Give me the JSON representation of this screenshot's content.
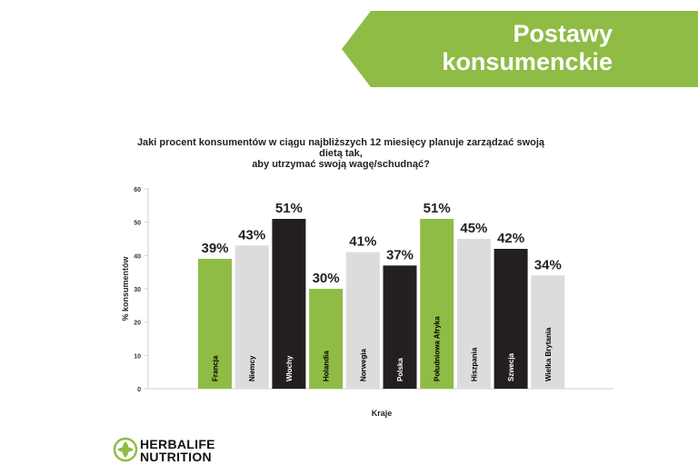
{
  "header": {
    "title_line1": "Postawy",
    "title_line2": "konsumenckie"
  },
  "brand": {
    "line1": "HERBALIFE",
    "line2": "NUTRITION",
    "logo_icon": "herbalife-leaf-icon"
  },
  "colors": {
    "green": "#8fbc45",
    "light_gray": "#dcdcdc",
    "black": "#231f20"
  },
  "chart_data": {
    "type": "bar",
    "title": "Jaki procent konsumentów w ciągu najbliższych 12 miesięcy planuje zarządzać swoją dietą tak, aby utrzymać swoją wagę/schudnąć?",
    "title_line1": "Jaki procent konsumentów w ciągu najbliższych 12 miesięcy planuje zarządzać swoją dietą tak,",
    "title_line2": "aby utrzymać swoją wagę/schudnąć?",
    "xlabel": "Kraje",
    "ylabel": "% konsumentów",
    "ylim": [
      0,
      60
    ],
    "yticks": [
      0,
      10,
      20,
      30,
      40,
      50,
      60
    ],
    "grid": false,
    "categories": [
      "Francja",
      "Niemcy",
      "Włochy",
      "Holandia",
      "Norwegia",
      "Polska",
      "Południowa Afryka",
      "Hiszpania",
      "Szwecja",
      "Wielka Brytania"
    ],
    "values": [
      39,
      43,
      51,
      30,
      41,
      37,
      51,
      45,
      42,
      34
    ],
    "value_labels": [
      "39%",
      "43%",
      "51%",
      "30%",
      "41%",
      "37%",
      "51%",
      "45%",
      "42%",
      "34%"
    ],
    "bar_colors": [
      "#8fbc45",
      "#dcdcdc",
      "#231f20",
      "#8fbc45",
      "#dcdcdc",
      "#231f20",
      "#8fbc45",
      "#dcdcdc",
      "#231f20",
      "#dcdcdc"
    ],
    "label_colors": [
      "#000000",
      "#000000",
      "#ffffff",
      "#000000",
      "#000000",
      "#ffffff",
      "#000000",
      "#000000",
      "#ffffff",
      "#000000"
    ]
  }
}
